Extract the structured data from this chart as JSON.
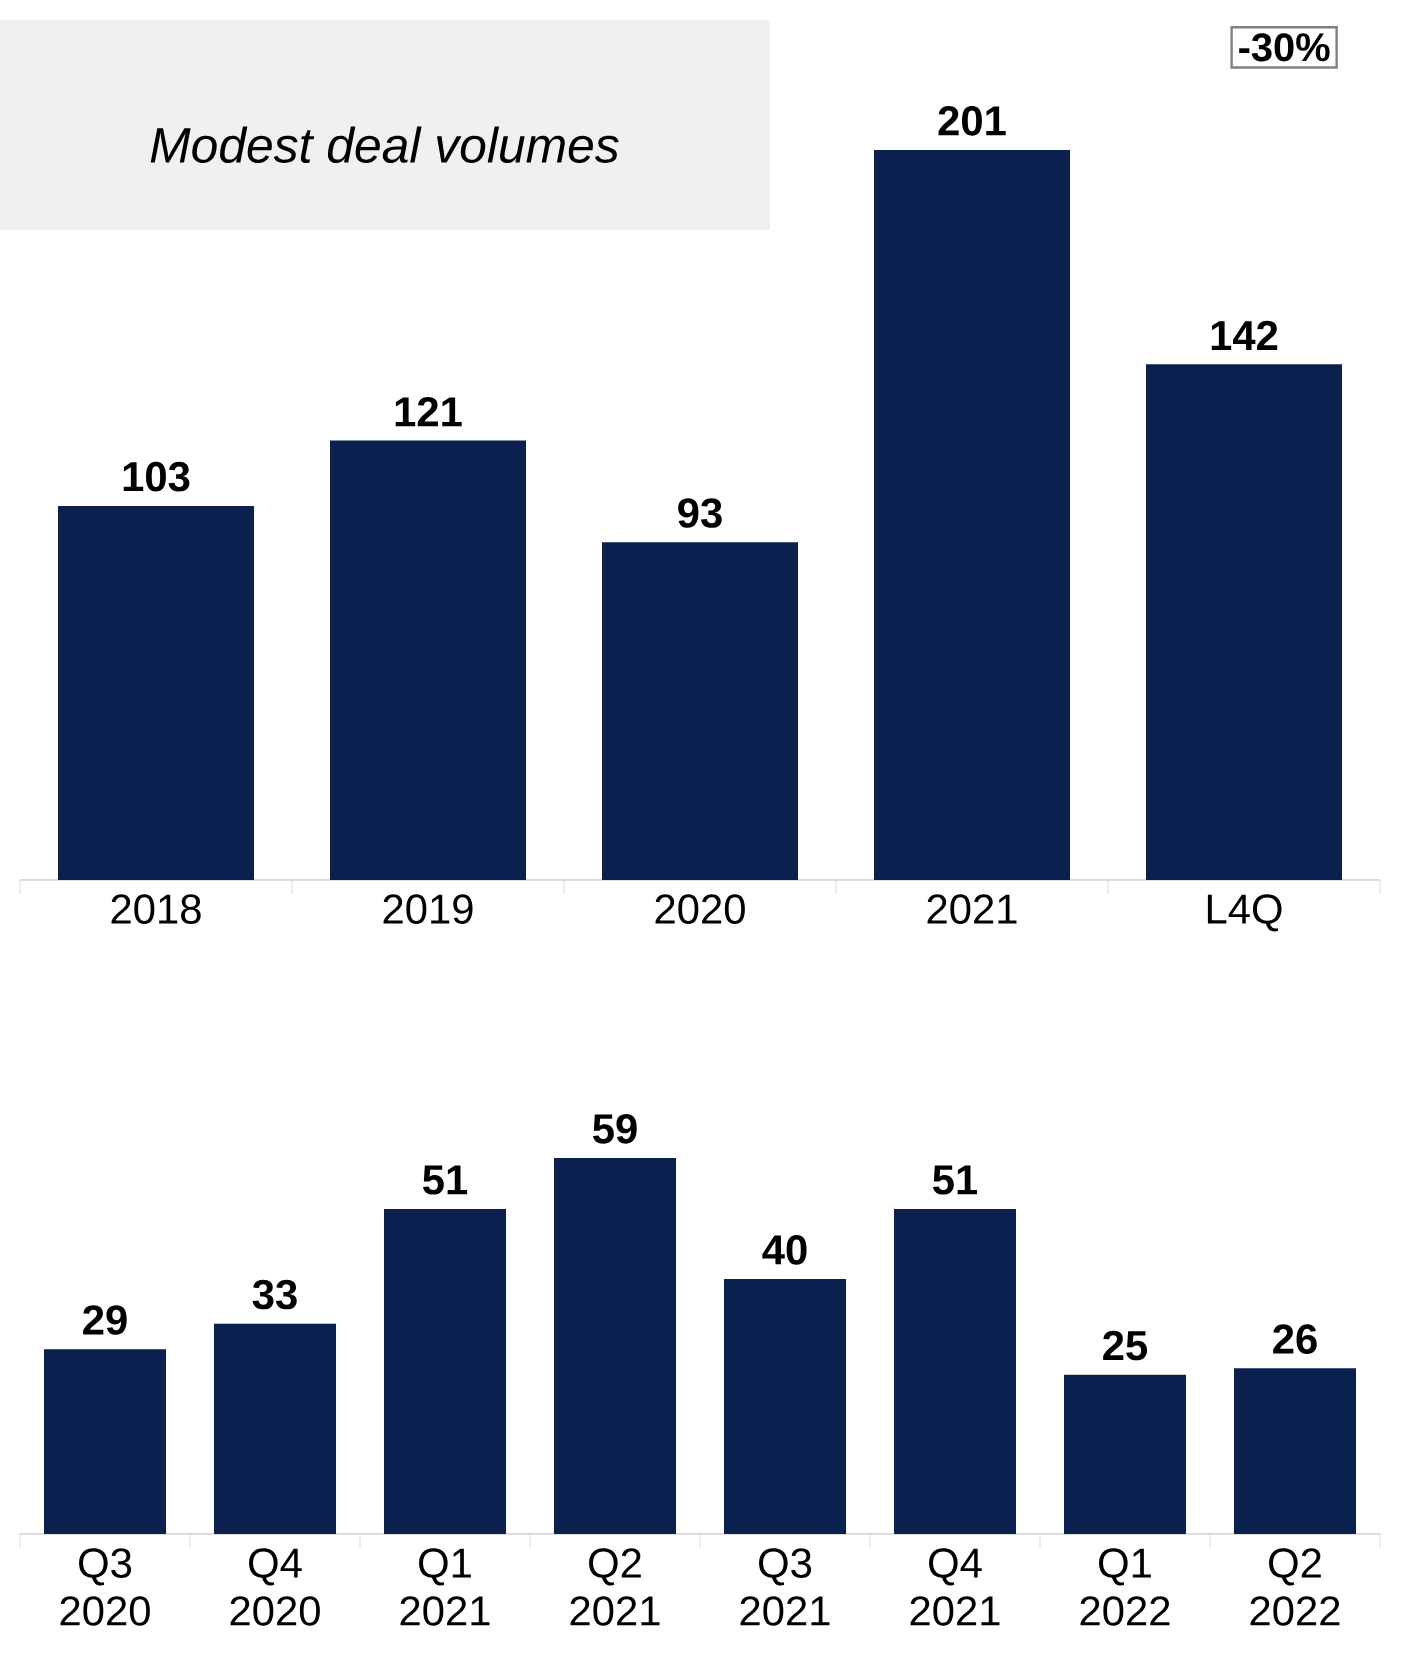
{
  "chart_data": [
    {
      "type": "bar",
      "title": "Modest deal volumes",
      "categories": [
        "2018",
        "2019",
        "2020",
        "2021",
        "L4Q"
      ],
      "values": [
        103,
        121,
        93,
        201,
        142
      ],
      "color": "#0a2150",
      "data_labels": true,
      "annotations": [
        "-30%"
      ]
    },
    {
      "type": "bar",
      "categories": [
        "Q3 2020",
        "Q4 2020",
        "Q1 2021",
        "Q2 2021",
        "Q3 2021",
        "Q4 2021",
        "Q1 2022",
        "Q2 2022"
      ],
      "values": [
        29,
        33,
        51,
        59,
        40,
        51,
        25,
        26
      ],
      "color": "#0a2150",
      "data_labels": true
    }
  ]
}
